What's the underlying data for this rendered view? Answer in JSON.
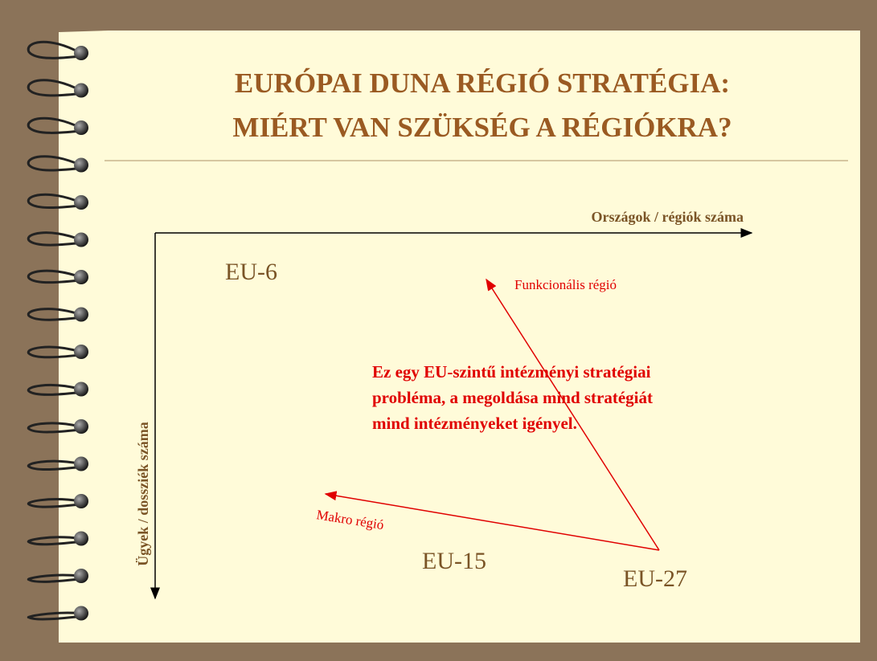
{
  "header": {
    "title_lines": [
      "EURÓPAI DUNA RÉGIÓ STRATÉGIA:",
      "MIÉRT VAN SZÜKSÉG A RÉGIÓKRA?"
    ]
  },
  "diagram": {
    "x_axis_label": "Országok / régiók száma",
    "y_axis_label": "Ügyek / dossziék száma",
    "points": [
      "EU-6",
      "EU-15",
      "EU-27"
    ],
    "arrows": [
      "Funkcionális régió",
      "Makro régió"
    ],
    "note_lines": [
      "Ez egy EU-szintű intézményi stratégiai",
      "probléma, a megoldása mind stratégiát",
      "mind intézményeket igényel."
    ]
  }
}
